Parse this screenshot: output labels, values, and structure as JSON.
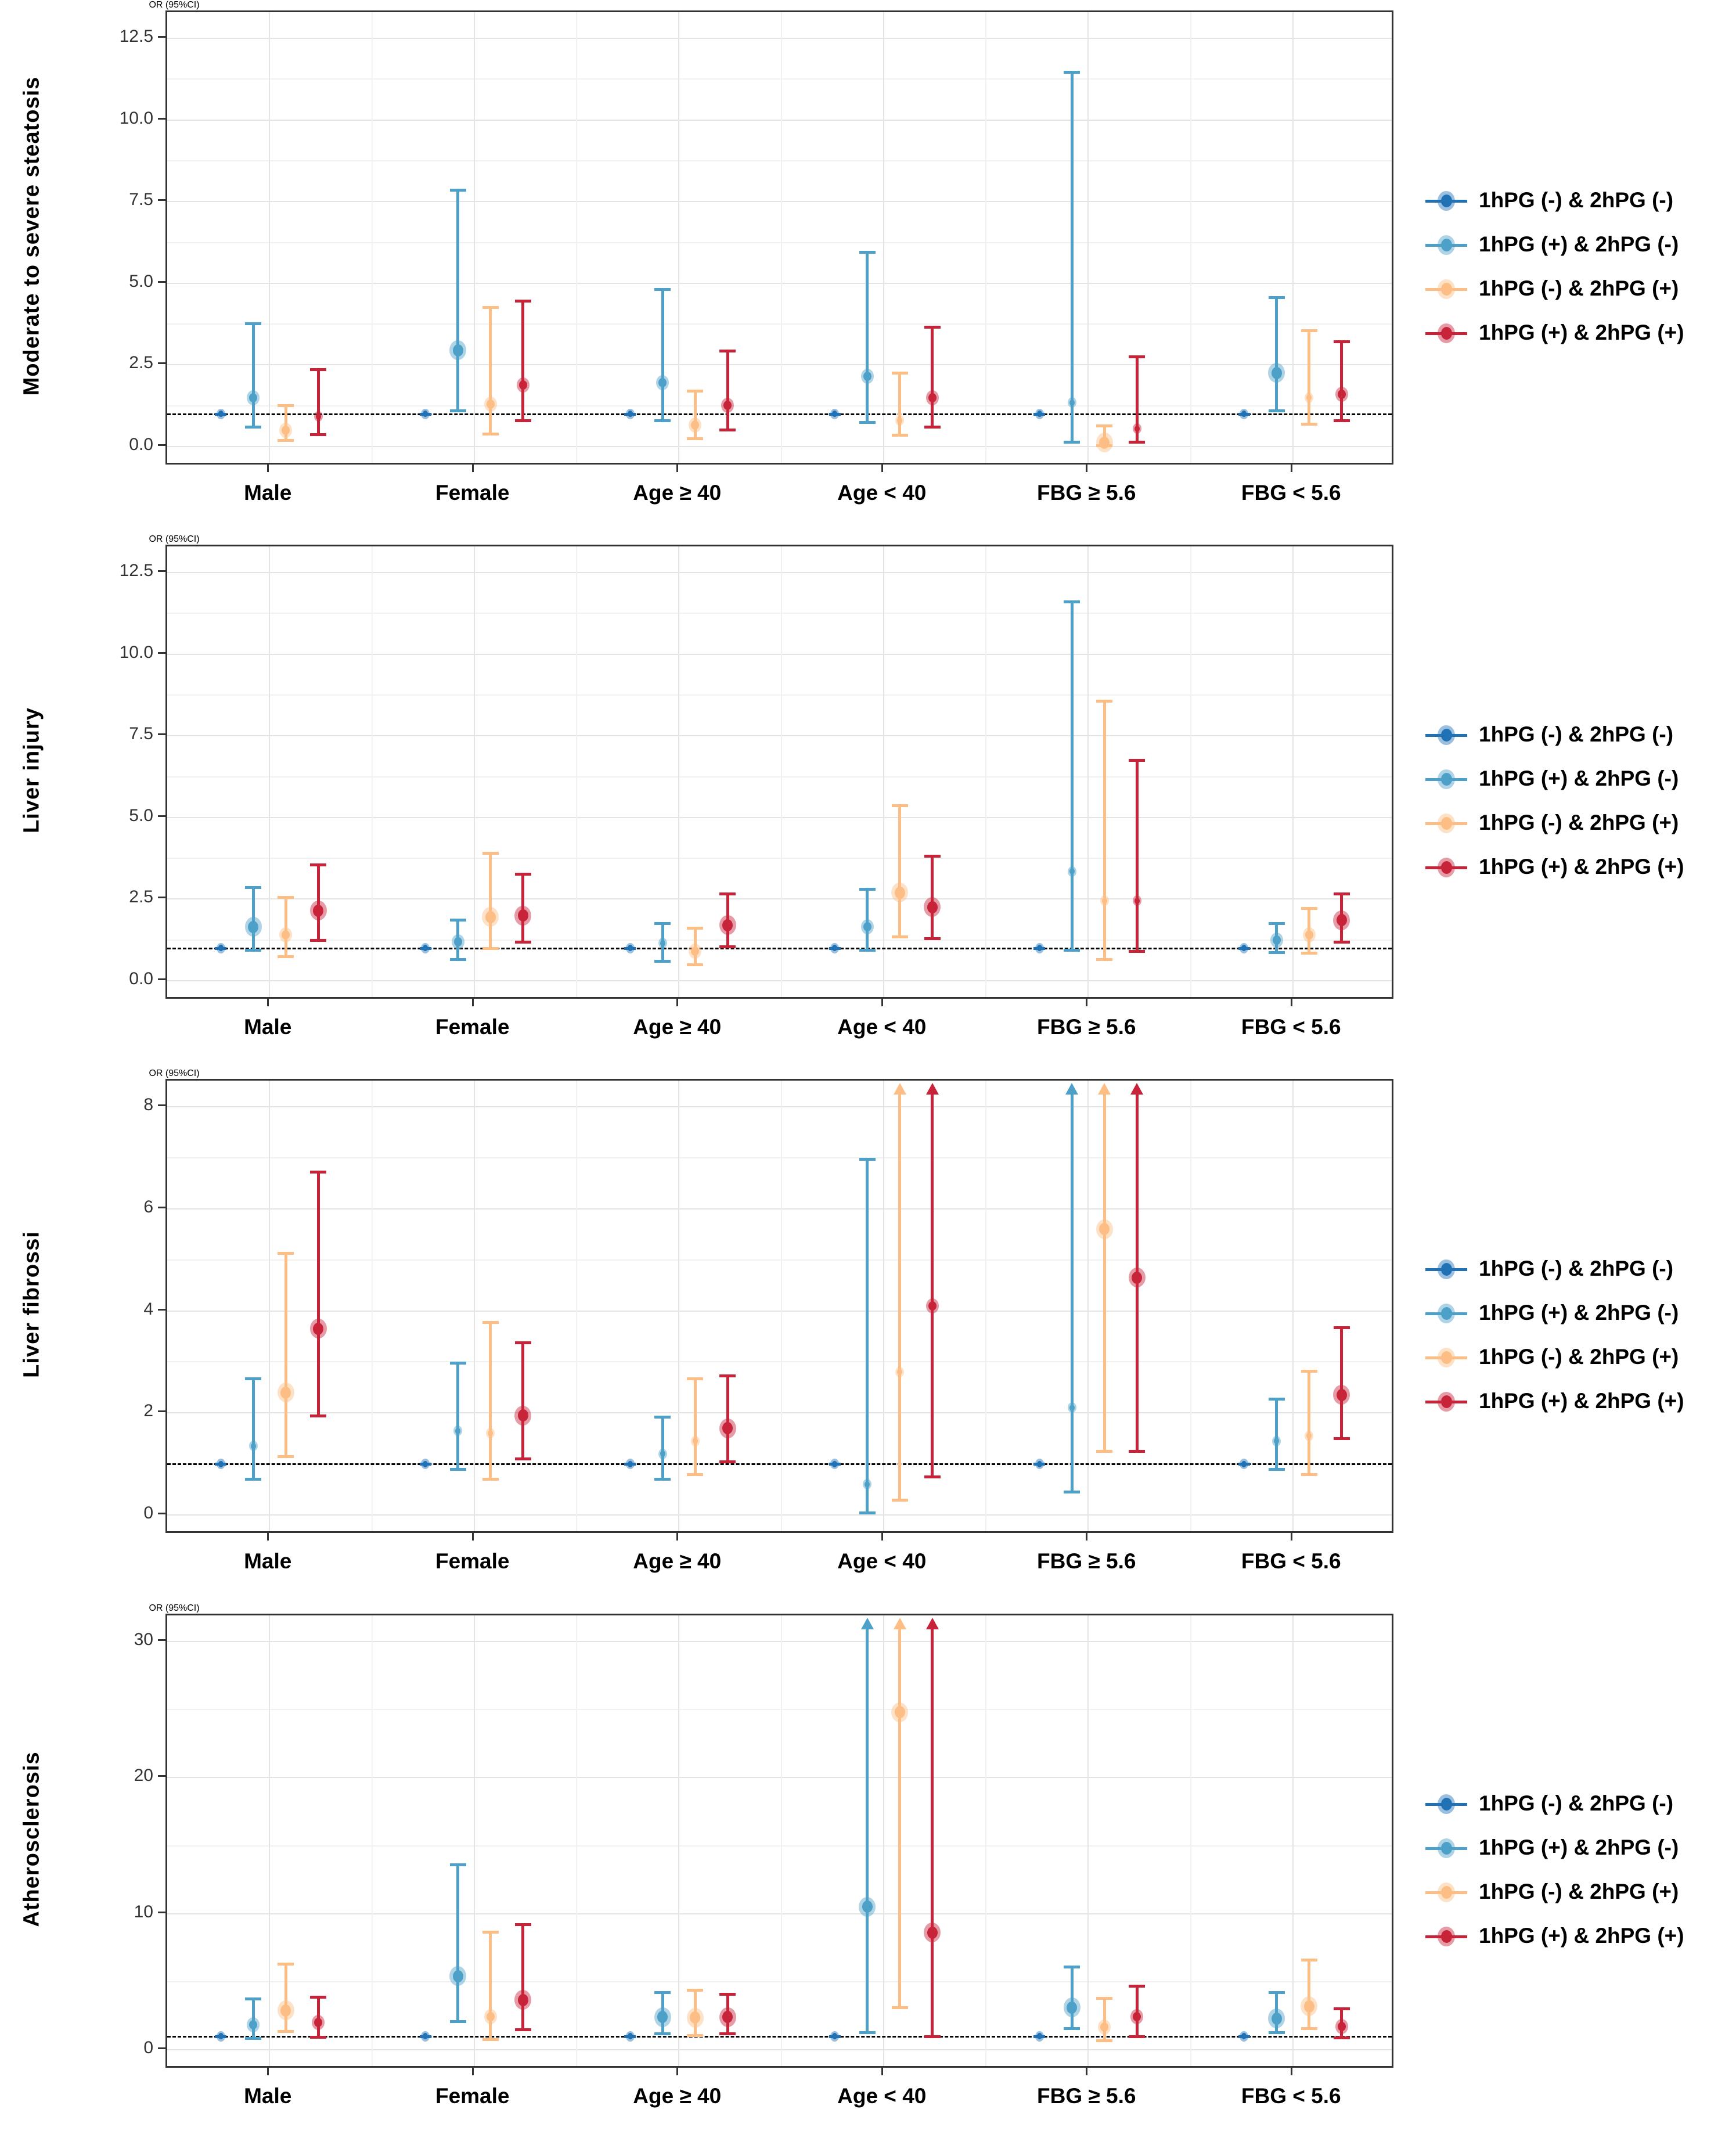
{
  "figure": {
    "type": "forest_plot_grid",
    "ref_line_value": 1.0,
    "x_groups": [
      "Male",
      "Female",
      "Age ≥ 40",
      "Age < 40",
      "FBG ≥ 5.6",
      "FBG < 5.6"
    ],
    "legend": {
      "items": [
        {
          "label": "1hPG (-) & 2hPG (-)",
          "color": "#2171B5"
        },
        {
          "label": "1hPG (+) & 2hPG (-)",
          "color": "#4DA0C8"
        },
        {
          "label": "1hPG (-) & 2hPG (+)",
          "color": "#FDBE85"
        },
        {
          "label": "1hPG (+) & 2hPG (+)",
          "color": "#C72339"
        }
      ]
    }
  },
  "chart_data": [
    {
      "type": "scatter",
      "panel_title": "Moderate to severe steatosis",
      "ylabel": "OR (95%CI)",
      "ylim": [
        0,
        12.5
      ],
      "yticks": [
        0.0,
        2.5,
        5.0,
        7.5,
        10.0,
        12.5
      ],
      "ytick_labels": [
        "0.0",
        "2.5",
        "5.0",
        "7.5",
        "10.0",
        "12.5"
      ],
      "categories": [
        "Male",
        "Female",
        "Age ≥ 40",
        "Age < 40",
        "FBG ≥ 5.6",
        "FBG < 5.6"
      ],
      "ref_line": 1.0,
      "series": [
        {
          "name": "1hPG (-) & 2hPG (-)",
          "color": "#2171B5",
          "points": [
            {
              "or": 1.0,
              "lo": 1.0,
              "hi": 1.0,
              "size": "s"
            },
            {
              "or": 1.0,
              "lo": 1.0,
              "hi": 1.0,
              "size": "s"
            },
            {
              "or": 1.0,
              "lo": 1.0,
              "hi": 1.0,
              "size": "s"
            },
            {
              "or": 1.0,
              "lo": 1.0,
              "hi": 1.0,
              "size": "s"
            },
            {
              "or": 1.0,
              "lo": 1.0,
              "hi": 1.0,
              "size": "s"
            },
            {
              "or": 1.0,
              "lo": 1.0,
              "hi": 1.0,
              "size": "s"
            }
          ]
        },
        {
          "name": "1hPG (+) & 2hPG (-)",
          "color": "#4DA0C8",
          "points": [
            {
              "or": 1.5,
              "lo": 0.6,
              "hi": 3.8,
              "size": "m"
            },
            {
              "or": 2.95,
              "lo": 1.1,
              "hi": 7.9,
              "size": "l"
            },
            {
              "or": 1.95,
              "lo": 0.8,
              "hi": 4.85,
              "size": "m"
            },
            {
              "or": 2.15,
              "lo": 0.75,
              "hi": 6.0,
              "size": "m"
            },
            {
              "or": 1.35,
              "lo": 0.15,
              "hi": 11.5,
              "size": "s"
            },
            {
              "or": 2.25,
              "lo": 1.1,
              "hi": 4.6,
              "size": "l"
            }
          ]
        },
        {
          "name": "1hPG (-) & 2hPG (+)",
          "color": "#FDBE85",
          "points": [
            {
              "or": 0.5,
              "lo": 0.2,
              "hi": 1.3,
              "size": "m"
            },
            {
              "or": 1.3,
              "lo": 0.4,
              "hi": 4.3,
              "size": "m"
            },
            {
              "or": 0.65,
              "lo": 0.25,
              "hi": 1.75,
              "size": "m"
            },
            {
              "or": 0.8,
              "lo": 0.35,
              "hi": 2.3,
              "size": "s"
            },
            {
              "or": 0.12,
              "lo": 0.03,
              "hi": 0.68,
              "size": "l"
            },
            {
              "or": 1.5,
              "lo": 0.7,
              "hi": 3.6,
              "size": "s"
            }
          ]
        },
        {
          "name": "1hPG (+) & 2hPG (+)",
          "color": "#C72339",
          "points": [
            {
              "or": 0.92,
              "lo": 0.37,
              "hi": 2.4,
              "size": "s"
            },
            {
              "or": 1.88,
              "lo": 0.8,
              "hi": 4.5,
              "size": "m"
            },
            {
              "or": 1.27,
              "lo": 0.52,
              "hi": 2.97,
              "size": "m"
            },
            {
              "or": 1.5,
              "lo": 0.6,
              "hi": 3.7,
              "size": "m"
            },
            {
              "or": 0.55,
              "lo": 0.15,
              "hi": 2.8,
              "size": "s"
            },
            {
              "or": 1.6,
              "lo": 0.8,
              "hi": 3.25,
              "size": "m"
            }
          ]
        }
      ]
    },
    {
      "type": "scatter",
      "panel_title": "Liver injury",
      "ylabel": "OR (95%CI)",
      "ylim": [
        0,
        12.5
      ],
      "yticks": [
        0.0,
        2.5,
        5.0,
        7.5,
        10.0,
        12.5
      ],
      "ytick_labels": [
        "0.0",
        "2.5",
        "5.0",
        "7.5",
        "10.0",
        "12.5"
      ],
      "categories": [
        "Male",
        "Female",
        "Age ≥ 40",
        "Age < 40",
        "FBG ≥ 5.6",
        "FBG < 5.6"
      ],
      "ref_line": 1.0,
      "series": [
        {
          "name": "1hPG (-) & 2hPG (-)",
          "color": "#2171B5",
          "points": [
            {
              "or": 1.0,
              "lo": 1.0,
              "hi": 1.0,
              "size": "s"
            },
            {
              "or": 1.0,
              "lo": 1.0,
              "hi": 1.0,
              "size": "s"
            },
            {
              "or": 1.0,
              "lo": 1.0,
              "hi": 1.0,
              "size": "s"
            },
            {
              "or": 1.0,
              "lo": 1.0,
              "hi": 1.0,
              "size": "s"
            },
            {
              "or": 1.0,
              "lo": 1.0,
              "hi": 1.0,
              "size": "s"
            },
            {
              "or": 1.0,
              "lo": 1.0,
              "hi": 1.0,
              "size": "s"
            }
          ]
        },
        {
          "name": "1hPG (+) & 2hPG (-)",
          "color": "#4DA0C8",
          "points": [
            {
              "or": 1.65,
              "lo": 0.95,
              "hi": 2.9,
              "size": "l"
            },
            {
              "or": 1.2,
              "lo": 0.65,
              "hi": 1.9,
              "size": "m"
            },
            {
              "or": 1.15,
              "lo": 0.6,
              "hi": 1.8,
              "size": "s"
            },
            {
              "or": 1.65,
              "lo": 0.95,
              "hi": 2.85,
              "size": "m"
            },
            {
              "or": 3.35,
              "lo": 0.95,
              "hi": 11.65,
              "size": "s"
            },
            {
              "or": 1.25,
              "lo": 0.88,
              "hi": 1.8,
              "size": "m"
            }
          ]
        },
        {
          "name": "1hPG (-) & 2hPG (+)",
          "color": "#FDBE85",
          "points": [
            {
              "or": 1.4,
              "lo": 0.75,
              "hi": 2.6,
              "size": "m"
            },
            {
              "or": 1.95,
              "lo": 1.0,
              "hi": 3.95,
              "size": "l"
            },
            {
              "or": 0.9,
              "lo": 0.5,
              "hi": 1.65,
              "size": "m"
            },
            {
              "or": 2.7,
              "lo": 1.35,
              "hi": 5.4,
              "size": "l"
            },
            {
              "or": 2.45,
              "lo": 0.65,
              "hi": 8.6,
              "size": "s"
            },
            {
              "or": 1.4,
              "lo": 0.85,
              "hi": 2.25,
              "size": "m"
            }
          ]
        },
        {
          "name": "1hPG (+) & 2hPG (+)",
          "color": "#C72339",
          "points": [
            {
              "or": 2.15,
              "lo": 1.25,
              "hi": 3.6,
              "size": "l"
            },
            {
              "or": 2.0,
              "lo": 1.2,
              "hi": 3.3,
              "size": "l"
            },
            {
              "or": 1.7,
              "lo": 1.05,
              "hi": 2.7,
              "size": "l"
            },
            {
              "or": 2.25,
              "lo": 1.3,
              "hi": 3.85,
              "size": "l"
            },
            {
              "or": 2.45,
              "lo": 0.9,
              "hi": 6.8,
              "size": "s"
            },
            {
              "or": 1.85,
              "lo": 1.2,
              "hi": 2.7,
              "size": "l"
            }
          ]
        }
      ]
    },
    {
      "type": "scatter",
      "panel_title": "Liver fibrossi",
      "ylabel": "OR (95%CI)",
      "ylim": [
        0,
        8
      ],
      "yticks": [
        0,
        2,
        4,
        6,
        8
      ],
      "ytick_labels": [
        "0",
        "2",
        "4",
        "6",
        "8"
      ],
      "categories": [
        "Male",
        "Female",
        "Age ≥ 40",
        "Age < 40",
        "FBG ≥ 5.6",
        "FBG < 5.6"
      ],
      "ref_line": 1.0,
      "series": [
        {
          "name": "1hPG (-) & 2hPG (-)",
          "color": "#2171B5",
          "points": [
            {
              "or": 1.0,
              "lo": 1.0,
              "hi": 1.0,
              "size": "s"
            },
            {
              "or": 1.0,
              "lo": 1.0,
              "hi": 1.0,
              "size": "s"
            },
            {
              "or": 1.0,
              "lo": 1.0,
              "hi": 1.0,
              "size": "s"
            },
            {
              "or": 1.0,
              "lo": 1.0,
              "hi": 1.0,
              "size": "s"
            },
            {
              "or": 1.0,
              "lo": 1.0,
              "hi": 1.0,
              "size": "s"
            },
            {
              "or": 1.0,
              "lo": 1.0,
              "hi": 1.0,
              "size": "s"
            }
          ]
        },
        {
          "name": "1hPG (+) & 2hPG (-)",
          "color": "#4DA0C8",
          "points": [
            {
              "or": 1.35,
              "lo": 0.7,
              "hi": 2.7,
              "size": "s"
            },
            {
              "or": 1.65,
              "lo": 0.9,
              "hi": 3.0,
              "size": "s"
            },
            {
              "or": 1.2,
              "lo": 0.7,
              "hi": 1.95,
              "size": "s"
            },
            {
              "or": 0.6,
              "lo": 0.05,
              "hi": 7.0,
              "size": "s"
            },
            {
              "or": 2.1,
              "lo": 0.45,
              "hi": null,
              "hi_arrow": true,
              "size": "s"
            },
            {
              "or": 1.45,
              "lo": 0.9,
              "hi": 2.3,
              "size": "s"
            }
          ]
        },
        {
          "name": "1hPG (-) & 2hPG (+)",
          "color": "#FDBE85",
          "points": [
            {
              "or": 2.4,
              "lo": 1.15,
              "hi": 5.15,
              "size": "l"
            },
            {
              "or": 1.6,
              "lo": 0.7,
              "hi": 3.8,
              "size": "s"
            },
            {
              "or": 1.45,
              "lo": 0.8,
              "hi": 2.7,
              "size": "s"
            },
            {
              "or": 2.8,
              "lo": 0.3,
              "hi": null,
              "hi_arrow": true,
              "size": "s"
            },
            {
              "or": 5.6,
              "lo": 1.25,
              "hi": null,
              "hi_arrow": true,
              "size": "l"
            },
            {
              "or": 1.55,
              "lo": 0.8,
              "hi": 2.85,
              "size": "s"
            }
          ]
        },
        {
          "name": "1hPG (+) & 2hPG (+)",
          "color": "#C72339",
          "points": [
            {
              "or": 3.65,
              "lo": 1.95,
              "hi": 6.75,
              "size": "l"
            },
            {
              "or": 1.95,
              "lo": 1.1,
              "hi": 3.4,
              "size": "l"
            },
            {
              "or": 1.7,
              "lo": 1.05,
              "hi": 2.75,
              "size": "l"
            },
            {
              "or": 4.1,
              "lo": 0.75,
              "hi": null,
              "hi_arrow": true,
              "size": "m"
            },
            {
              "or": 4.65,
              "lo": 1.25,
              "hi": null,
              "hi_arrow": true,
              "size": "l"
            },
            {
              "or": 2.35,
              "lo": 1.5,
              "hi": 3.7,
              "size": "l"
            }
          ]
        }
      ]
    },
    {
      "type": "scatter",
      "panel_title": "Atherosclerosis",
      "ylabel": "OR (95%CI)",
      "ylim": [
        0,
        30
      ],
      "yticks": [
        0,
        10,
        20,
        30
      ],
      "ytick_labels": [
        "0",
        "10",
        "20",
        "30"
      ],
      "categories": [
        "Male",
        "Female",
        "Age ≥ 40",
        "Age < 40",
        "FBG ≥ 5.6",
        "FBG < 5.6"
      ],
      "ref_line": 1.0,
      "series": [
        {
          "name": "1hPG (-) & 2hPG (-)",
          "color": "#2171B5",
          "points": [
            {
              "or": 1.0,
              "lo": 1.0,
              "hi": 1.0,
              "size": "s"
            },
            {
              "or": 1.0,
              "lo": 1.0,
              "hi": 1.0,
              "size": "s"
            },
            {
              "or": 1.0,
              "lo": 1.0,
              "hi": 1.0,
              "size": "s"
            },
            {
              "or": 1.0,
              "lo": 1.0,
              "hi": 1.0,
              "size": "s"
            },
            {
              "or": 1.0,
              "lo": 1.0,
              "hi": 1.0,
              "size": "s"
            },
            {
              "or": 1.0,
              "lo": 1.0,
              "hi": 1.0,
              "size": "s"
            }
          ]
        },
        {
          "name": "1hPG (+) & 2hPG (-)",
          "color": "#4DA0C8",
          "points": [
            {
              "or": 1.85,
              "lo": 0.85,
              "hi": 3.85,
              "size": "m"
            },
            {
              "or": 5.4,
              "lo": 2.1,
              "hi": 13.7,
              "size": "l"
            },
            {
              "or": 2.4,
              "lo": 1.2,
              "hi": 4.3,
              "size": "l"
            },
            {
              "or": 10.5,
              "lo": 1.3,
              "hi": null,
              "hi_arrow": true,
              "size": "l"
            },
            {
              "or": 3.1,
              "lo": 1.6,
              "hi": 6.2,
              "size": "l"
            },
            {
              "or": 2.3,
              "lo": 1.3,
              "hi": 4.3,
              "size": "l"
            }
          ]
        },
        {
          "name": "1hPG (-) & 2hPG (+)",
          "color": "#FDBE85",
          "points": [
            {
              "or": 2.9,
              "lo": 1.35,
              "hi": 6.4,
              "size": "l"
            },
            {
              "or": 2.45,
              "lo": 0.75,
              "hi": 8.75,
              "size": "m"
            },
            {
              "or": 2.35,
              "lo": 1.05,
              "hi": 4.5,
              "size": "l"
            },
            {
              "or": 24.8,
              "lo": 3.1,
              "hi": null,
              "hi_arrow": true,
              "size": "l"
            },
            {
              "or": 1.65,
              "lo": 0.7,
              "hi": 3.9,
              "size": "m"
            },
            {
              "or": 3.2,
              "lo": 1.6,
              "hi": 6.7,
              "size": "l"
            }
          ]
        },
        {
          "name": "1hPG (+) & 2hPG (+)",
          "color": "#C72339",
          "points": [
            {
              "or": 2.0,
              "lo": 0.95,
              "hi": 3.95,
              "size": "m"
            },
            {
              "or": 3.65,
              "lo": 1.5,
              "hi": 9.3,
              "size": "l"
            },
            {
              "or": 2.4,
              "lo": 1.2,
              "hi": 4.2,
              "size": "l"
            },
            {
              "or": 8.6,
              "lo": 1.0,
              "hi": null,
              "hi_arrow": true,
              "size": "l"
            },
            {
              "or": 2.45,
              "lo": 1.0,
              "hi": 4.8,
              "size": "m"
            },
            {
              "or": 1.7,
              "lo": 0.9,
              "hi": 3.1,
              "size": "m"
            }
          ]
        }
      ]
    }
  ]
}
